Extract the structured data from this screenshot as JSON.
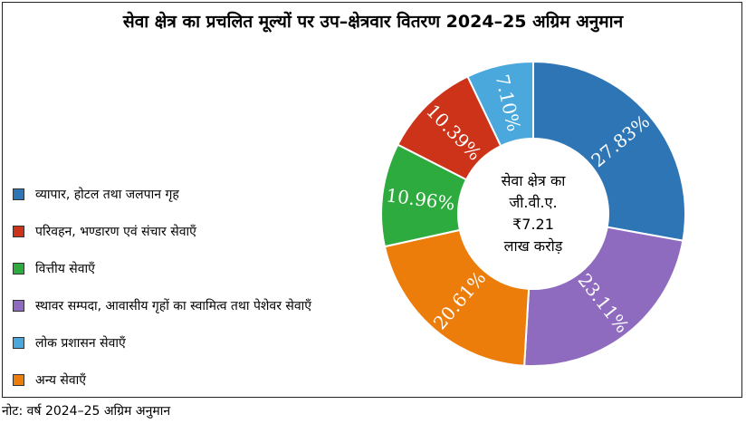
{
  "title": "सेवा क्षेत्र का प्रचलित मूल्यों पर उप–क्षेत्रवार वितरण 2024–25 अग्रिम अनुमान",
  "note": "नोट: वर्ष 2024–25 अग्रिम अनुमान",
  "center": {
    "line1": "सेवा क्षेत्र का",
    "line2": "जी.वी.ए.",
    "line3": "₹7.21",
    "line4": "लाख करोड़"
  },
  "chart_data": {
    "type": "pie",
    "donut": true,
    "legend_position": "left",
    "categories": [
      "व्यापार, होटल तथा जलपान गृह",
      "स्थावर सम्पदा, आवासीय गृहों का स्वामित्व तथा पेशेवर सेवाएँ",
      "अन्य सेवाएँ",
      "वित्तीय सेवाएँ",
      "परिवहन, भण्डारण एवं संचार सेवाएँ",
      "लोक प्रशासन सेवाएँ"
    ],
    "values": [
      27.83,
      23.11,
      20.61,
      10.96,
      10.39,
      7.1
    ],
    "labels": [
      "27.83%",
      "23.11%",
      "20.61%",
      "10.96%",
      "10.39%",
      "7.10%"
    ],
    "colors": [
      "#2e75b6",
      "#8e6bbf",
      "#ed7d0a",
      "#2eab3e",
      "#cc3319",
      "#4ba8dc"
    ]
  },
  "legend": [
    {
      "label": "व्यापार, होटल तथा जलपान गृह",
      "color": "#2e75b6"
    },
    {
      "label": "परिवहन, भण्डारण एवं संचार सेवाएँ",
      "color": "#cc3319"
    },
    {
      "label": "वित्तीय सेवाएँ",
      "color": "#2eab3e"
    },
    {
      "label": "स्थावर सम्पदा, आवासीय गृहों का स्वामित्व तथा पेशेवर सेवाएँ",
      "color": "#8e6bbf"
    },
    {
      "label": "लोक प्रशासन सेवाएँ",
      "color": "#4ba8dc"
    },
    {
      "label": "अन्य सेवाएँ",
      "color": "#ed7d0a"
    }
  ]
}
